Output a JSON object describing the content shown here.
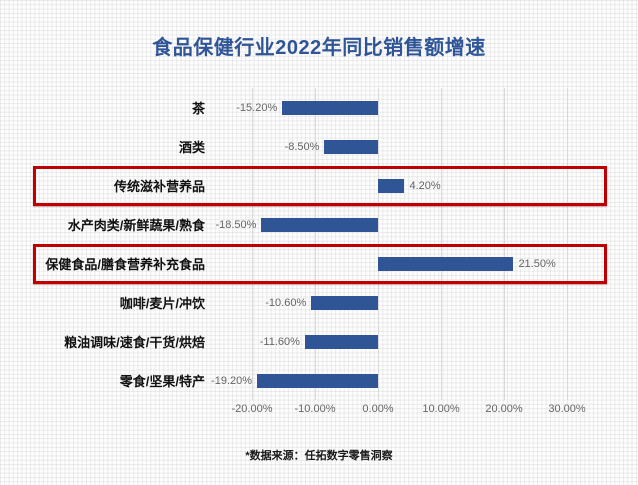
{
  "title": "食品保健行业2022年同比销售额增速",
  "footer": "*数据来源：任拓数字零售洞察",
  "colors": {
    "title": "#2F5597",
    "bar": "#2F5597",
    "highlight_border": "#C00000",
    "gridline": "#D9D9D9",
    "value_label": "#666666",
    "axis_label": "#666666",
    "category_label": "#111111"
  },
  "chart_data": {
    "type": "bar",
    "orientation": "horizontal",
    "title": "食品保健行业2022年同比销售额增速",
    "categories": [
      "茶",
      "酒类",
      "传统滋补营养品",
      "水产肉类/新鲜蔬果/熟食",
      "保健食品/膳食营养补充食品",
      "咖啡/麦片/冲饮",
      "粮油调味/速食/干货/烘焙",
      "零食/坚果/特产"
    ],
    "values": [
      -15.2,
      -8.5,
      4.2,
      -18.5,
      21.5,
      -10.6,
      -11.6,
      -19.2
    ],
    "value_labels": [
      "-15.20%",
      "-8.50%",
      "4.20%",
      "-18.50%",
      "21.50%",
      "-10.60%",
      "-11.60%",
      "-19.20%"
    ],
    "highlighted_indexes": [
      2,
      4
    ],
    "x_ticks": [
      {
        "label": "-20.00%",
        "value": -20
      },
      {
        "label": "-10.00%",
        "value": -10
      },
      {
        "label": "0.00%",
        "value": 0
      },
      {
        "label": "10.00%",
        "value": 10
      },
      {
        "label": "20.00%",
        "value": 20
      },
      {
        "label": "30.00%",
        "value": 30
      }
    ],
    "xlim": [
      -20,
      30
    ],
    "grid": true,
    "legend": false,
    "source_note": "*数据来源：任拓数字零售洞察"
  }
}
